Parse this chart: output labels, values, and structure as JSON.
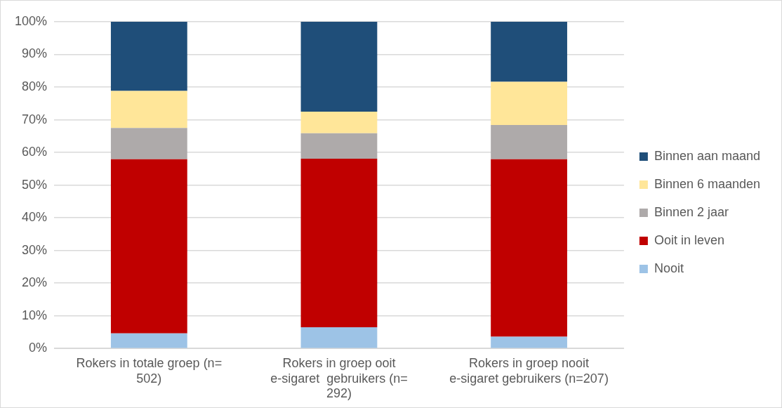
{
  "chart_data": {
    "type": "bar",
    "stacked": true,
    "categories": [
      "Rokers in totale groep (n= 502)",
      "Rokers in groep ooit e-sigaret  gebruikers (n= 292)",
      "Rokers in groep nooit e-sigaret gebruikers (n=207)"
    ],
    "series": [
      {
        "name": "Nooit",
        "color": "#9dc3e6",
        "values": [
          4.6,
          6.5,
          3.6
        ]
      },
      {
        "name": "Ooit in leven",
        "color": "#c00000",
        "values": [
          53.3,
          51.6,
          54.3
        ]
      },
      {
        "name": "Binnen 2 jaar",
        "color": "#aeaaaa",
        "values": [
          9.6,
          7.8,
          10.5
        ]
      },
      {
        "name": "Binnen 6 maanden",
        "color": "#ffe699",
        "values": [
          11.3,
          6.6,
          13.2
        ]
      },
      {
        "name": "Binnen aan maand",
        "color": "#1f4e79",
        "values": [
          21.2,
          27.5,
          18.4
        ]
      }
    ],
    "ylim": [
      0,
      100
    ],
    "yticks": [
      {
        "value": 0,
        "label": "0%"
      },
      {
        "value": 10,
        "label": "10%"
      },
      {
        "value": 20,
        "label": "20%"
      },
      {
        "value": 30,
        "label": "30%"
      },
      {
        "value": 40,
        "label": "40%"
      },
      {
        "value": 50,
        "label": "50%"
      },
      {
        "value": 60,
        "label": "60%"
      },
      {
        "value": 70,
        "label": "70%"
      },
      {
        "value": 80,
        "label": "80%"
      },
      {
        "value": 90,
        "label": "90%"
      },
      {
        "value": 100,
        "label": "100%"
      }
    ],
    "grid": "y",
    "legend": "right"
  }
}
